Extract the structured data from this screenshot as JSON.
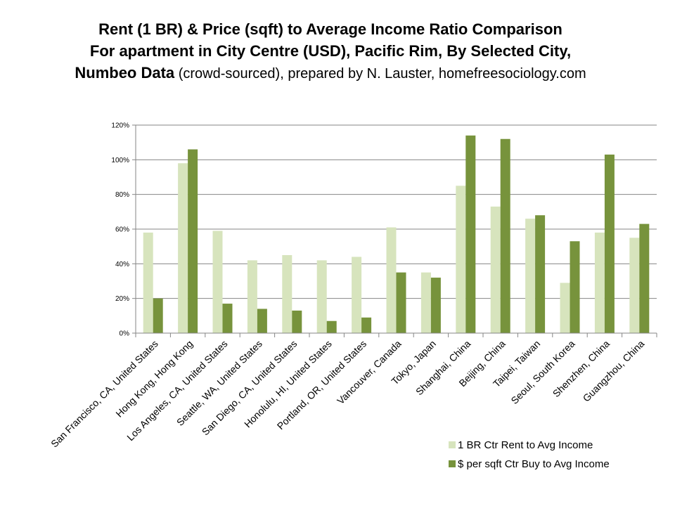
{
  "title": {
    "line1": "Rent (1 BR) & Price (sqft) to Average Income Ratio Comparison",
    "line2": "For apartment in City Centre (USD), Pacific Rim, By Selected City,",
    "line3_bold": "Numbeo Data",
    "line3_rest": " (crowd-sourced), prepared by N. Lauster, homefreesociology.com"
  },
  "colors": {
    "rent": "#d7e4bd",
    "buy": "#77933c",
    "grid": "#868686",
    "axis": "#868686"
  },
  "chart_data": {
    "type": "bar",
    "categories": [
      "San Francisco, CA, United States",
      "Hong Kong, Hong Kong",
      "Los Angeles, CA, United States",
      "Seattle, WA, United States",
      "San Diego, CA, United States",
      "Honolulu, HI, United States",
      "Portland, OR, United States",
      "Vancouver, Canada",
      "Tokyo, Japan",
      "Shanghai, China",
      "Beijing, China",
      "Taipei, Taiwan",
      "Seoul, South Korea",
      "Shenzhen, China",
      "Guangzhou, China"
    ],
    "series": [
      {
        "name": "1 BR Ctr Rent to Avg Income",
        "color": "#d7e4bd",
        "values": [
          58,
          98,
          59,
          42,
          45,
          42,
          44,
          61,
          35,
          85,
          73,
          66,
          29,
          58,
          55
        ]
      },
      {
        "name": "$ per sqft Ctr Buy to Avg Income",
        "color": "#77933c",
        "values": [
          20,
          106,
          17,
          14,
          13,
          7,
          9,
          35,
          32,
          114,
          112,
          68,
          53,
          103,
          63
        ]
      }
    ],
    "ylim": [
      0,
      120
    ],
    "yticks": [
      0,
      20,
      40,
      60,
      80,
      100,
      120
    ],
    "ytick_labels": [
      "0%",
      "20%",
      "40%",
      "60%",
      "80%",
      "100%",
      "120%"
    ],
    "grid": true,
    "legend_position": "bottom-right",
    "xlabel": "",
    "ylabel": ""
  }
}
